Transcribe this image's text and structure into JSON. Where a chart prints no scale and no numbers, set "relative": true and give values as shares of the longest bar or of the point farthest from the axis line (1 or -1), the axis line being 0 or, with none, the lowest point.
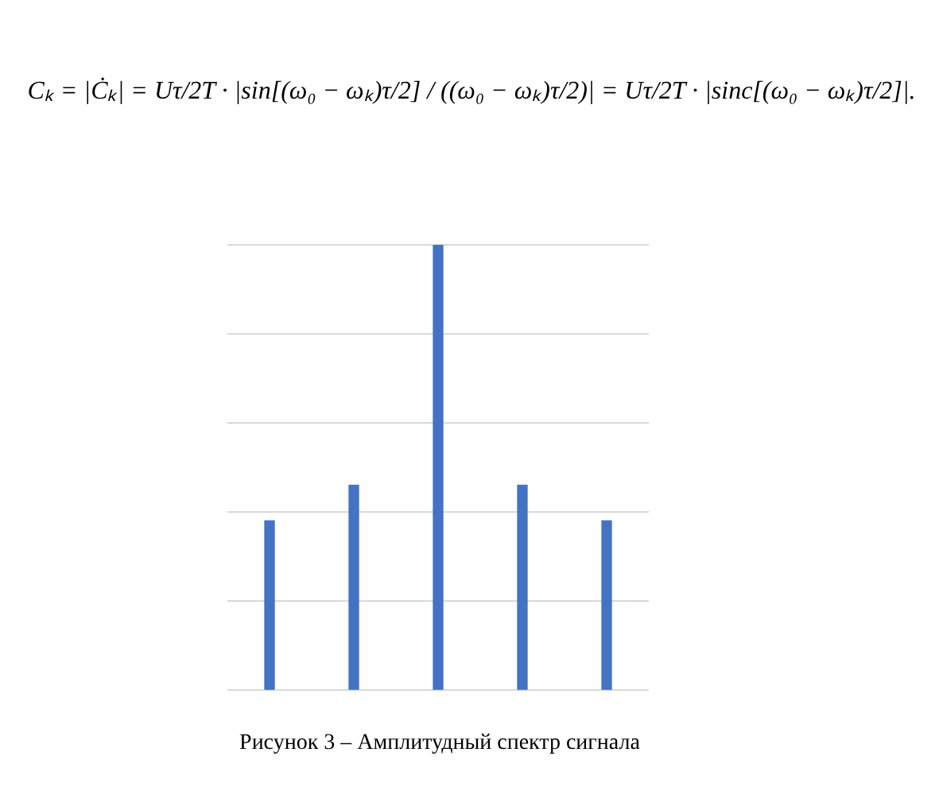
{
  "chart_data": {
    "type": "bar",
    "relative": true,
    "grid": "y",
    "categories": [
      null,
      null,
      null,
      null,
      null
    ],
    "values": [
      0.38,
      0.46,
      1,
      0.46,
      0.38
    ],
    "color": "#4472c4",
    "annotations": [
      "Cₖ = |Ċₖ| = Uτ/2T · |sin[(ω₀ − ωₖ)τ/2] / ((ω₀ − ωₖ)τ/2)| = Uτ/2T · |sinc[(ω₀ − ωₖ)τ/2]|.",
      "Рисунок 3 – Амплитудный спектр сигнала"
    ]
  }
}
